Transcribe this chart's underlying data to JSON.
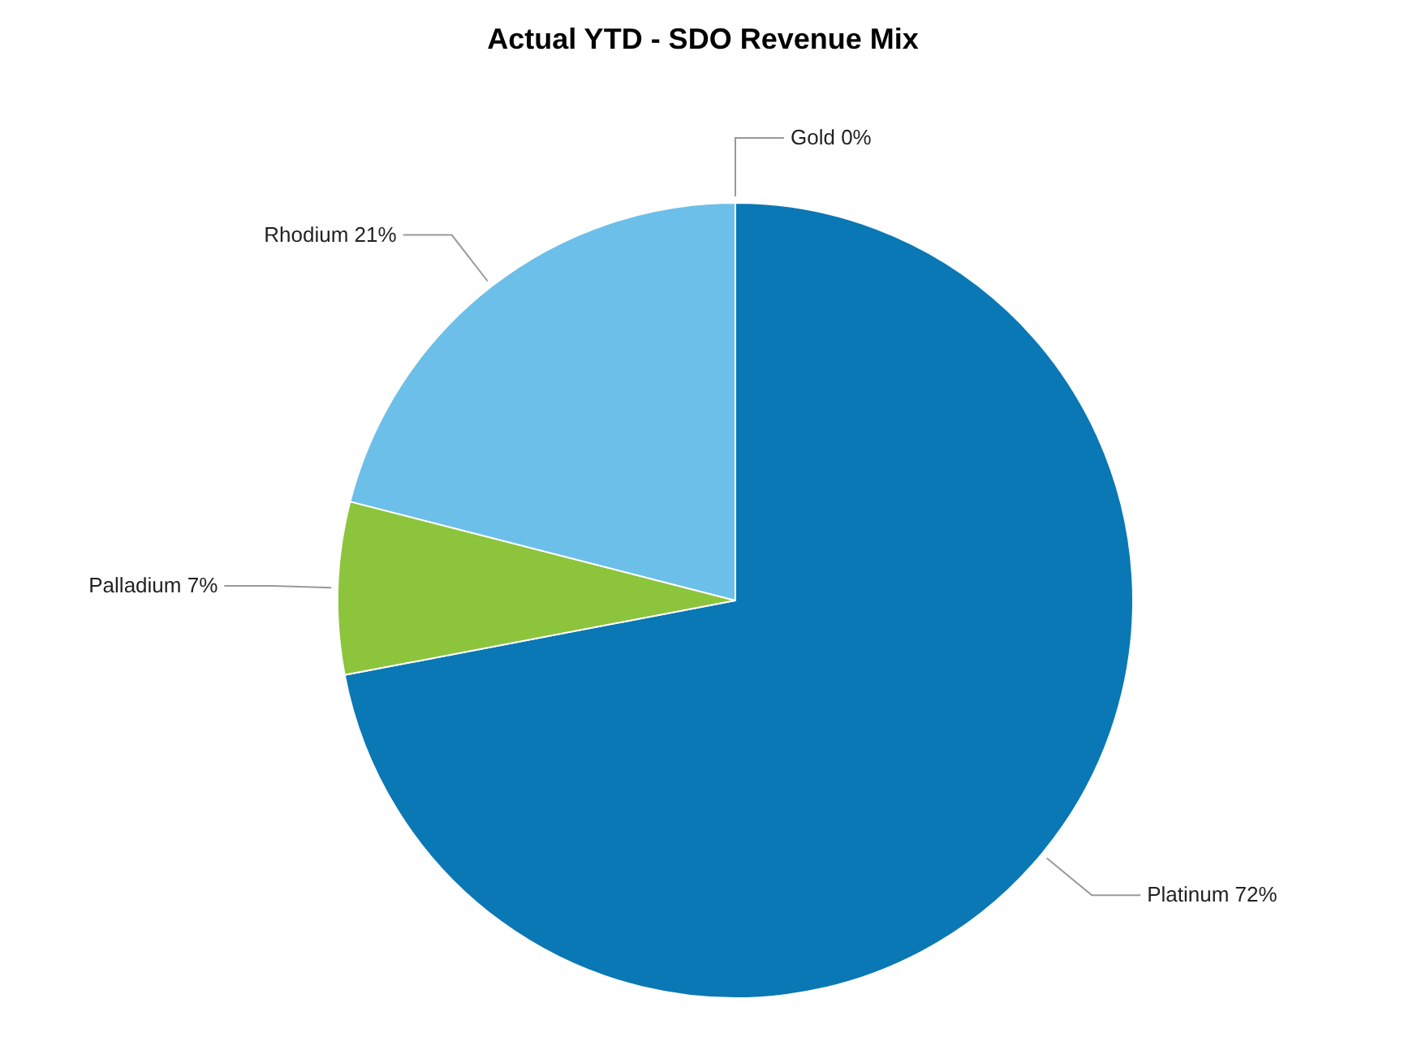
{
  "chart_data": {
    "type": "pie",
    "title": "Actual YTD - SDO Revenue Mix",
    "categories": [
      "Gold",
      "Platinum",
      "Palladium",
      "Rhodium"
    ],
    "values": [
      0,
      72,
      7,
      21
    ],
    "value_labels": [
      "0%",
      "72%",
      "7%",
      "21%"
    ],
    "colors": [
      "#e8b820",
      "#0a78b4",
      "#8cc43c",
      "#6cbfe8"
    ]
  }
}
